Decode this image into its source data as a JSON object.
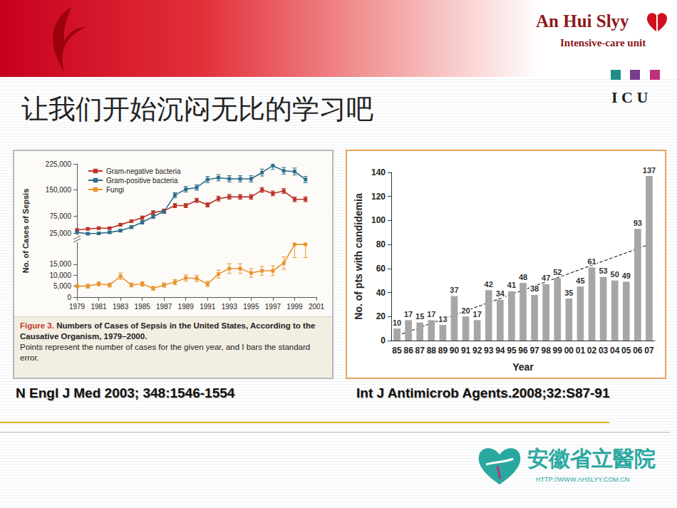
{
  "slide": {
    "title": "让我们开始沉闷无比的学习吧",
    "brand": "An Hui Slyy",
    "unit": "Intensive-care unit",
    "icu": "I C U",
    "hospital": "安徽省立醫院",
    "url": "HTTP://WWW.AHSLYY.COM.CN"
  },
  "chart_data": [
    {
      "type": "line",
      "y_label": "No. of Cases of Sepsis",
      "caption": {
        "label": "Figure 3.",
        "title": "Numbers of Cases of Sepsis in the United States, According to the Causative Organism, 1979–2000.",
        "note": "Points represent the number of cases for the given year, and I bars the standard error."
      },
      "source": "N Engl J Med 2003; 348:1546-1554",
      "x": [
        1979,
        1980,
        1981,
        1982,
        1983,
        1984,
        1985,
        1986,
        1987,
        1988,
        1989,
        1990,
        1991,
        1992,
        1993,
        1994,
        1995,
        1996,
        1997,
        1998,
        1999,
        2000
      ],
      "xlim": [
        1979,
        2001
      ],
      "xticks": [
        1979,
        1981,
        1983,
        1985,
        1987,
        1989,
        1991,
        1993,
        1995,
        1997,
        1999,
        2001
      ],
      "ylim": [
        0,
        25000
      ],
      "yticks": [
        0,
        {
          "value": 5000,
          "label": "5,000"
        },
        {
          "value": 10000,
          "label": "10,000"
        },
        {
          "value": 15000,
          "label": "15,000"
        }
      ],
      "y2lim": [
        20000,
        225000
      ],
      "y2ticks": [
        {
          "value": 25000,
          "label": "25,000"
        },
        {
          "value": 75000,
          "label": "75,000"
        },
        {
          "value": 150000,
          "label": "150,000"
        },
        {
          "value": 225000,
          "label": "225,000"
        }
      ],
      "legend": "top-left",
      "grid": false,
      "marker": "square",
      "series": [
        {
          "name": "Gram-negative bacteria",
          "color": "#b8352b",
          "axis": "y2",
          "values": [
            35000,
            38000,
            40000,
            40000,
            50000,
            60000,
            70000,
            85000,
            90000,
            105000,
            105000,
            120000,
            107000,
            125000,
            130000,
            130000,
            130000,
            150000,
            140000,
            147000,
            123000,
            123000
          ],
          "errors": [
            3000,
            3000,
            3000,
            3000,
            4000,
            4000,
            5000,
            5000,
            5000,
            6000,
            6000,
            6000,
            6000,
            7000,
            7000,
            7000,
            7000,
            7000,
            7000,
            7000,
            7000,
            7000
          ]
        },
        {
          "name": "Gram-positive bacteria",
          "color": "#2c6e8c",
          "axis": "y2",
          "values": [
            28000,
            24000,
            25000,
            28000,
            33000,
            43000,
            57000,
            73000,
            88000,
            135000,
            152000,
            157000,
            180000,
            185000,
            182000,
            182000,
            182000,
            200000,
            220000,
            205000,
            203000,
            180000
          ],
          "errors": [
            3000,
            3000,
            3000,
            3000,
            4000,
            4000,
            5000,
            5000,
            6000,
            7000,
            8000,
            8000,
            9000,
            9000,
            9000,
            9000,
            9000,
            10000,
            11000,
            10000,
            10000,
            9000
          ]
        },
        {
          "name": "Fungi",
          "color": "#e8952e",
          "values": [
            5000,
            5000,
            6000,
            5500,
            9500,
            5500,
            6000,
            4000,
            5500,
            6800,
            8700,
            8500,
            6000,
            10500,
            13000,
            13000,
            11000,
            12000,
            12000,
            15500,
            24000,
            24000
          ],
          "errors": [
            900,
            900,
            900,
            900,
            1500,
            900,
            1000,
            900,
            1000,
            1200,
            1400,
            1400,
            1200,
            1800,
            2200,
            2200,
            2000,
            2000,
            2200,
            2800,
            6000,
            6000
          ]
        }
      ]
    },
    {
      "type": "bar",
      "y_label": "No. of pts with candidemia",
      "x_label": "Year",
      "source": "Int J Antimicrob Agents.2008;32:S87-91",
      "categories": [
        "85",
        "86",
        "87",
        "88",
        "89",
        "90",
        "91",
        "92",
        "93",
        "94",
        "95",
        "96",
        "97",
        "98",
        "99",
        "00",
        "01",
        "02",
        "03",
        "04",
        "05",
        "06",
        "07"
      ],
      "values": [
        10,
        17,
        15,
        17,
        13,
        37,
        20,
        17,
        42,
        34,
        41,
        48,
        38,
        47,
        52,
        35,
        45,
        61,
        53,
        50,
        49,
        93,
        137
      ],
      "color": "#a6a6a6",
      "data_labels": true,
      "grid": false,
      "ylim": [
        0,
        140
      ],
      "yticks": [
        0,
        20,
        40,
        60,
        80,
        100,
        120,
        140
      ],
      "trend": {
        "start": 4,
        "end": 80,
        "line_style": "dashed"
      }
    }
  ]
}
